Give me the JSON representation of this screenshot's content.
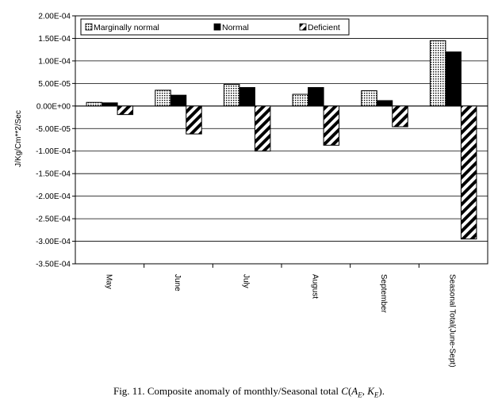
{
  "chart_data": {
    "type": "bar",
    "categories": [
      "May",
      "June",
      "July",
      "August",
      "September",
      "Seasonal Total(June-Sept)"
    ],
    "series": [
      {
        "name": "Marginally normal",
        "values": [
          8e-06,
          3.5e-05,
          4.8e-05,
          2.6e-05,
          3.4e-05,
          0.000145
        ],
        "color": "#ffffff",
        "pattern": "dots"
      },
      {
        "name": "Normal",
        "values": [
          7e-06,
          2.4e-05,
          4.1e-05,
          4.1e-05,
          1.2e-05,
          0.00012
        ],
        "color": "#000000",
        "pattern": "solid"
      },
      {
        "name": "Deficient",
        "values": [
          -1.9e-05,
          -6.2e-05,
          -0.0001,
          -8.7e-05,
          -4.6e-05,
          -0.000295
        ],
        "color": "#ffffff",
        "pattern": "diagonal-stripes"
      }
    ],
    "ylabel": "J/Kg/Cm**2/Sec",
    "ylim": [
      -0.00035,
      0.0002
    ],
    "yticks": [
      0.0002,
      0.00015,
      0.0001,
      5e-05,
      0,
      -5e-05,
      -0.0001,
      -0.00015,
      -0.0002,
      -0.00025,
      -0.0003,
      -0.00035
    ],
    "ytick_labels": [
      "2.00E-04",
      "1.50E-04",
      "1.00E-04",
      "5.00E-05",
      "0.00E+00",
      "-5.00E-05",
      "-1.00E-04",
      "-1.50E-04",
      "-2.00E-04",
      "-2.50E-04",
      "-3.00E-04",
      "-3.50E-04"
    ],
    "grid": true,
    "legend_placement": "top-left"
  },
  "caption": {
    "prefix": "Fig. 11. Composite anomaly of monthly/Seasonal total ",
    "C": "C",
    "open": "(",
    "A": "A",
    "A_sub": "E",
    "comma": ", ",
    "K": "K",
    "K_sub": "E",
    "close": ")."
  }
}
